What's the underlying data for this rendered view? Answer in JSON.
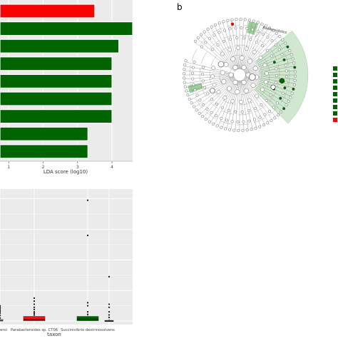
{
  "panel_b_label": "b",
  "chart_data": [
    {
      "type": "bar",
      "orientation": "horizontal",
      "xlabel": "LDA score (log10)",
      "xticks": [
        "1",
        "2",
        "3",
        "4"
      ],
      "xlim": [
        0.0,
        4.6
      ],
      "values": [
        3.5,
        4.6,
        4.2,
        4.0,
        4.0,
        4.0,
        4.0,
        3.3,
        3.3
      ],
      "bar_colors": [
        "#ff0000",
        "#006400",
        "#006400",
        "#006400",
        "#006400",
        "#006400",
        "#006400",
        "#006400",
        "#006400"
      ],
      "grid": true
    },
    {
      "type": "cladogram",
      "annotation": "Bacteroidetes",
      "legend_colors": [
        "#006400",
        "#006400",
        "#006400",
        "#006400",
        "#006400",
        "#006400",
        "#006400",
        "#006400",
        "#ff0000"
      ]
    },
    {
      "type": "box",
      "xlabel": "taxon",
      "categories": [
        "...eroi",
        "Parabacteroides sp. CT06",
        "Succinivibrio dextrinosolvens",
        ""
      ],
      "box_colors": [
        "#ffffff",
        "#e31a1c",
        "#006400",
        "#ffffff"
      ],
      "medians": [
        0.02,
        0.05,
        0.06,
        0.0
      ],
      "q1": [
        0.0,
        0.01,
        0.01,
        0.0
      ],
      "q3": [
        0.05,
        0.15,
        0.15,
        0.02
      ],
      "outliers": [
        [
          0.1,
          0.18,
          0.25,
          0.3,
          0.35,
          0.4,
          0.45,
          0.5
        ],
        [
          0.2,
          0.25,
          0.3,
          0.38,
          0.45,
          0.55,
          0.65,
          0.75
        ],
        [
          0.22,
          0.3,
          0.5,
          0.6,
          2.8,
          3.95
        ],
        [
          0.12,
          0.2,
          0.3,
          0.45,
          0.55,
          1.45
        ]
      ],
      "ylim": [
        0,
        4.2
      ],
      "grid": true
    }
  ]
}
